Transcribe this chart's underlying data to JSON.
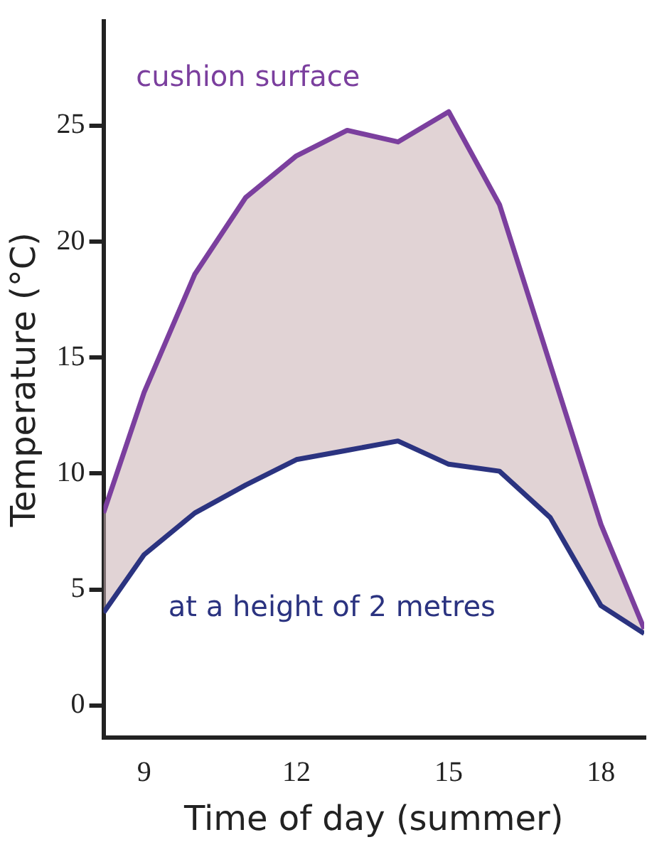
{
  "chart_data": {
    "type": "line",
    "xlabel": "Time of day (summer)",
    "ylabel": "Temperature (°C)",
    "series": [
      {
        "name": "cushion surface",
        "type": "area",
        "color": "#7b3f9e",
        "values": [
          8.3,
          13.5,
          18.6,
          21.9,
          23.7,
          24.8,
          24.3,
          25.6,
          21.6,
          14.7,
          7.8,
          3.3
        ]
      },
      {
        "name": "at a height of 2 metres",
        "color": "#2b3380",
        "values": [
          4.0,
          6.5,
          8.3,
          9.5,
          10.6,
          11.0,
          11.4,
          10.4,
          10.1,
          8.1,
          4.3,
          3.1
        ]
      }
    ],
    "x": [
      8.2,
      9,
      10,
      11,
      12,
      13,
      14,
      15,
      16,
      17,
      18,
      18.85
    ],
    "xlim": [
      8.2,
      18.85
    ],
    "xticks": [
      9,
      12,
      15,
      18
    ],
    "ylim": [
      -1.4,
      29.5
    ],
    "yticks": [
      0,
      5,
      10,
      15,
      20,
      25
    ],
    "grid": false,
    "legend": false,
    "marker": "none",
    "line_style": "solid"
  }
}
